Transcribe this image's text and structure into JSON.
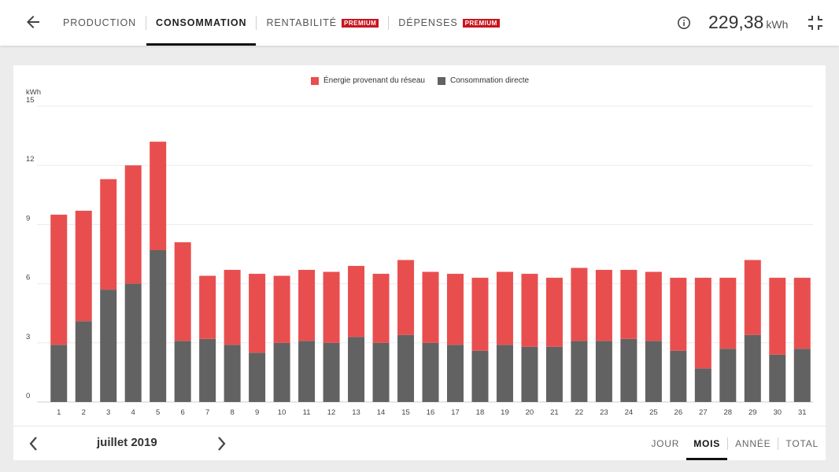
{
  "tabs": [
    {
      "label": "PRODUCTION",
      "badge": ""
    },
    {
      "label": "CONSOMMATION",
      "badge": ""
    },
    {
      "label": "RENTABILITÉ",
      "badge": "PREMIUM"
    },
    {
      "label": "DÉPENSES",
      "badge": "PREMIUM"
    }
  ],
  "active_tab": "CONSOMMATION",
  "header": {
    "total_value": "229,38",
    "total_unit": "kWh"
  },
  "icons": {
    "back": "arrow-left-icon",
    "info": "info-icon",
    "collapse": "collapse-icon",
    "prev": "chevron-left-icon",
    "next": "chevron-right-icon"
  },
  "colors": {
    "grid": "#e94e4f",
    "direct": "#626262",
    "badge": "#c8141e"
  },
  "legend": {
    "grid": "Énergie provenant du réseau",
    "direct": "Consommation directe"
  },
  "chart_data": {
    "type": "bar",
    "stacked": true,
    "ylabel": "kWh",
    "ylim": [
      0,
      15
    ],
    "yticks": [
      0,
      3,
      6,
      9,
      12,
      15
    ],
    "grid": true,
    "legend_position": "top",
    "categories": [
      "1",
      "2",
      "3",
      "4",
      "5",
      "6",
      "7",
      "8",
      "9",
      "10",
      "11",
      "12",
      "13",
      "14",
      "15",
      "16",
      "17",
      "18",
      "19",
      "20",
      "21",
      "22",
      "23",
      "24",
      "25",
      "26",
      "27",
      "28",
      "29",
      "30",
      "31"
    ],
    "series": [
      {
        "name": "Consommation directe",
        "values": [
          2.9,
          4.1,
          5.7,
          6.0,
          7.7,
          3.1,
          3.2,
          2.9,
          2.5,
          3.0,
          3.1,
          3.0,
          3.3,
          3.0,
          3.4,
          3.0,
          2.9,
          2.6,
          2.9,
          2.8,
          2.8,
          3.1,
          3.1,
          3.2,
          3.1,
          2.6,
          1.7,
          2.7,
          3.4,
          2.4,
          2.7
        ]
      },
      {
        "name": "Énergie provenant du réseau",
        "values": [
          6.6,
          5.6,
          5.6,
          6.0,
          5.5,
          5.0,
          3.2,
          3.8,
          4.0,
          3.4,
          3.6,
          3.6,
          3.6,
          3.5,
          3.8,
          3.6,
          3.6,
          3.7,
          3.7,
          3.7,
          3.5,
          3.7,
          3.6,
          3.5,
          3.5,
          3.7,
          4.6,
          3.6,
          3.8,
          3.9,
          3.6
        ]
      }
    ]
  },
  "footer": {
    "period": "juillet 2019",
    "ranges": [
      "JOUR",
      "MOIS",
      "ANNÉE",
      "TOTAL"
    ],
    "active_range": "MOIS"
  }
}
